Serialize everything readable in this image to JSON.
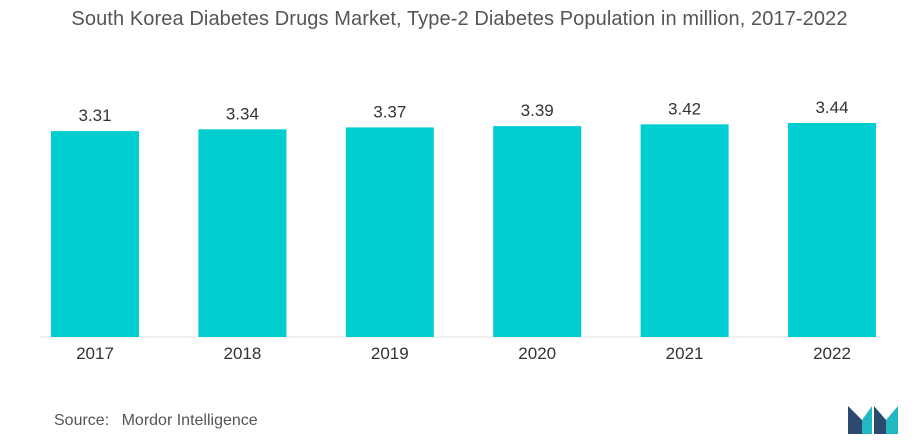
{
  "chart_data": {
    "type": "bar",
    "title": "South Korea Diabetes Drugs Market, Type-2 Diabetes Population in million, 2017-2022",
    "categories": [
      "2017",
      "2018",
      "2019",
      "2020",
      "2021",
      "2022"
    ],
    "values": [
      3.31,
      3.34,
      3.37,
      3.39,
      3.42,
      3.44
    ],
    "value_labels": [
      "3.31",
      "3.34",
      "3.37",
      "3.39",
      "3.42",
      "3.44"
    ],
    "xlabel": "",
    "ylabel": "",
    "grid": false,
    "legend": "none",
    "bar_color": "#00CED1"
  },
  "source": {
    "label": "Source:",
    "text": "Mordor Intelligence"
  },
  "logo": {
    "icon": "mordor-intelligence-logo",
    "colors": [
      "#2B4A6E",
      "#1FB8C3"
    ]
  }
}
